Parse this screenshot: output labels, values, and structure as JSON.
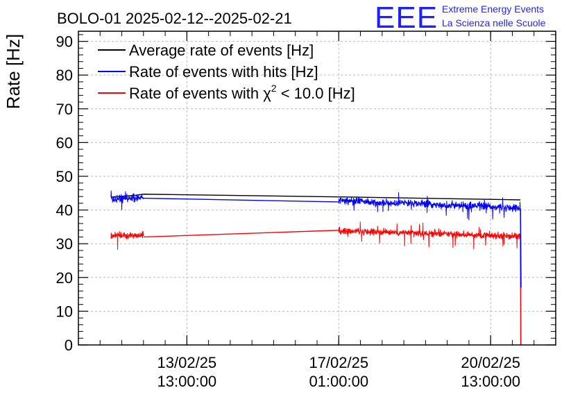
{
  "title": "BOLO-01 2025-02-12--2025-02-21",
  "logo": {
    "mark": "EEE",
    "line1": "Extreme Energy Events",
    "line2": "La Scienza nelle Scuole",
    "color": "#1f1fff"
  },
  "chart_data": {
    "type": "line",
    "ylabel": "Rate [Hz]",
    "xlabel": "",
    "ylim": [
      0,
      93
    ],
    "xlim": [
      -36,
      228
    ],
    "x_unit": "hours after 2025-02-12 13:00:00",
    "yticks": [
      0,
      10,
      20,
      30,
      40,
      50,
      60,
      70,
      80,
      90
    ],
    "xticks": [
      {
        "x": 24,
        "date": "13/02/25",
        "time": "13:00:00"
      },
      {
        "x": 108,
        "date": "17/02/25",
        "time": "01:00:00"
      },
      {
        "x": 192,
        "date": "20/02/25",
        "time": "13:00:00"
      }
    ],
    "grid": true,
    "legend_position": "top-left",
    "series": [
      {
        "name": "Average rate of events [Hz]",
        "color": "#000000",
        "points": [
          [
            -18,
            43.8
          ],
          [
            -4,
            44.4
          ],
          [
            0,
            44.7
          ],
          [
            108,
            43.9
          ],
          [
            200,
            43.1
          ],
          [
            208.5,
            43.0
          ]
        ]
      },
      {
        "name": "Rate of events with hits [Hz]",
        "color": "#0000ff",
        "noisy_segments": [
          {
            "x0": -18,
            "x1": 0,
            "y0": 43.2,
            "y1": 43.8,
            "amp": 1.6
          },
          {
            "x0": 108,
            "x1": 208.5,
            "y0": 42.8,
            "y1": 40.6,
            "amp": 1.6
          }
        ],
        "connector": [
          [
            0,
            43.5
          ],
          [
            108,
            42.4
          ]
        ],
        "drop": [
          [
            208.5,
            40.5
          ],
          [
            208.8,
            17.0
          ]
        ]
      },
      {
        "name": "Rate of events with χ² < 10.0 [Hz]",
        "color": "#ff0000",
        "noisy_segments": [
          {
            "x0": -18,
            "x1": 0,
            "y0": 32.4,
            "y1": 32.6,
            "amp": 1.5
          },
          {
            "x0": 108,
            "x1": 208.5,
            "y0": 33.9,
            "y1": 32.2,
            "amp": 1.5
          }
        ],
        "connector": [
          [
            0,
            32.0
          ],
          [
            108,
            34.0
          ]
        ],
        "drop": [
          [
            208.5,
            32.3
          ],
          [
            208.7,
            0
          ]
        ]
      }
    ]
  },
  "legend": {
    "item1": "Average rate of events [Hz]",
    "item2": "Rate of events with hits [Hz]",
    "item3_prefix": "Rate of events with ",
    "item3_chi": "χ",
    "item3_sup": "2",
    "item3_suffix": " < 10.0 [Hz]"
  }
}
